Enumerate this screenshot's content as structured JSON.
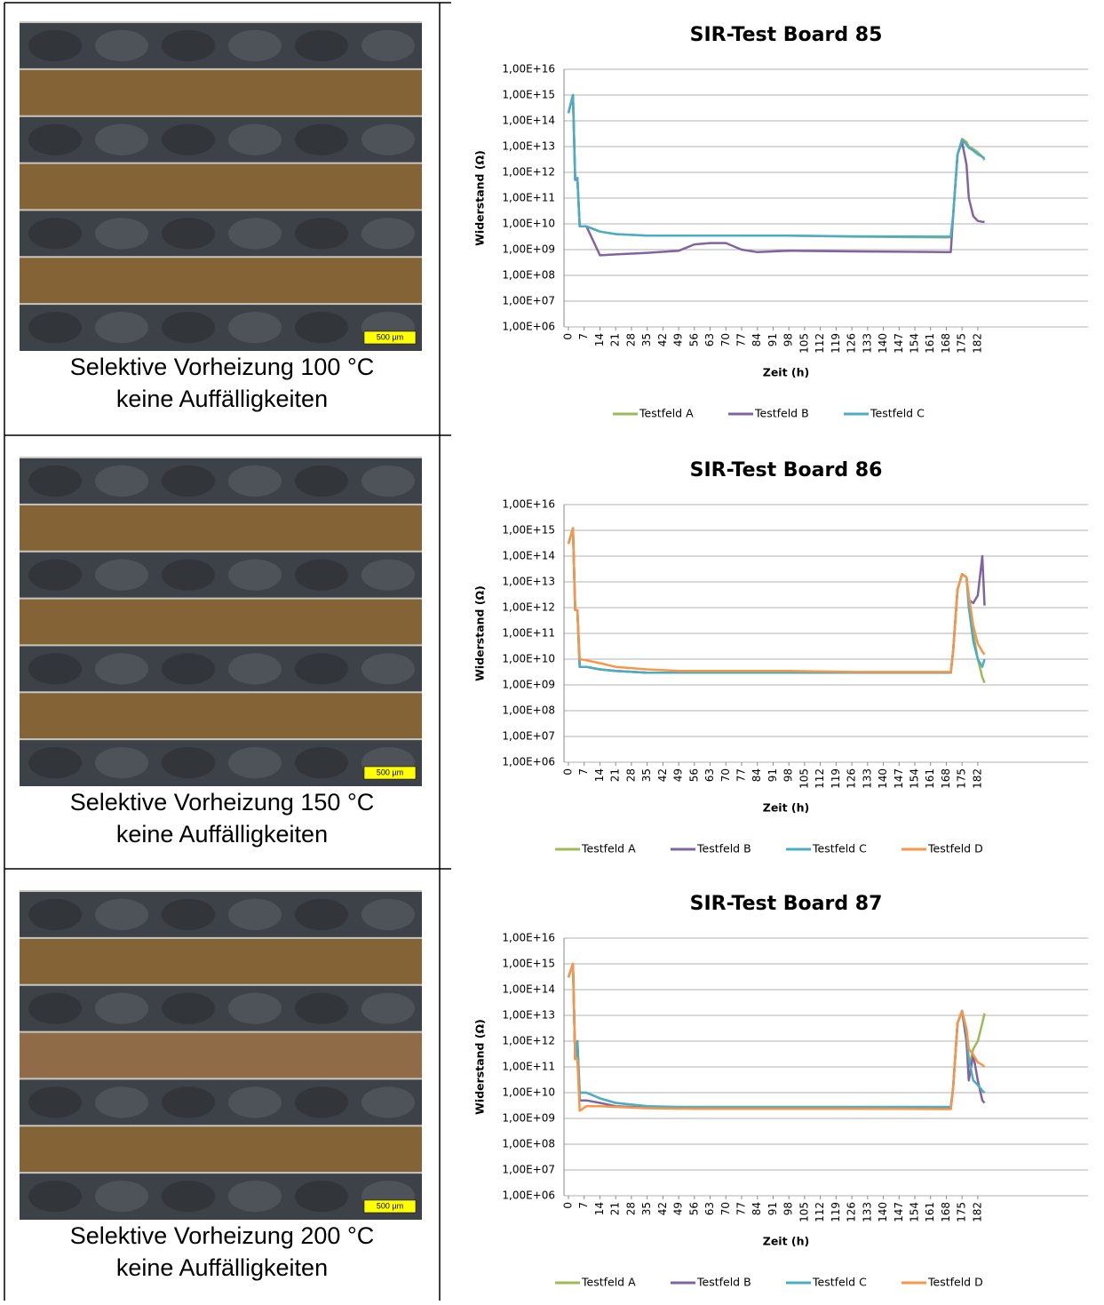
{
  "rows": [
    {
      "caption": [
        "Selektive Vorheizung 100 °C",
        "keine Auffälligkeiten"
      ],
      "scale": "500 µm"
    },
    {
      "caption": [
        "Selektive Vorheizung 150 °C",
        "keine Auffälligkeiten"
      ],
      "scale": "500 µm"
    },
    {
      "caption": [
        "Selektive Vorheizung 200 °C",
        "keine Auffälligkeiten"
      ],
      "scale": "500 µm"
    }
  ],
  "chart_data": [
    {
      "type": "line",
      "title": "SIR-Test Board 85",
      "x_label": "Zeit (h)",
      "y_label": "Widerstand (Ω)",
      "log_y": true,
      "grid": true,
      "legend": "bottom",
      "x": [
        0,
        2,
        3,
        4,
        5,
        8,
        14,
        21,
        35,
        49,
        56,
        63,
        70,
        77,
        84,
        98,
        126,
        168,
        170,
        171,
        173,
        175,
        177,
        178,
        180,
        182,
        184,
        185
      ],
      "xlim": [
        0,
        231
      ],
      "xticks": [
        0,
        7,
        14,
        21,
        28,
        35,
        42,
        49,
        56,
        63,
        70,
        77,
        84,
        91,
        98,
        105,
        112,
        119,
        126,
        133,
        140,
        147,
        154,
        161,
        168,
        175,
        182
      ],
      "ylim": [
        1000000.0,
        1e+16
      ],
      "yticks": [
        {
          "value": 1000000.0,
          "label": "1,00E+06"
        },
        {
          "value": 10000000.0,
          "label": "1,00E+07"
        },
        {
          "value": 100000000.0,
          "label": "1,00E+08"
        },
        {
          "value": 1000000000.0,
          "label": "1,00E+09"
        },
        {
          "value": 10000000000.0,
          "label": "1,00E+10"
        },
        {
          "value": 100000000000.0,
          "label": "1,00E+11"
        },
        {
          "value": 1000000000000.0,
          "label": "1,00E+12"
        },
        {
          "value": 10000000000000.0,
          "label": "1,00E+13"
        },
        {
          "value": 100000000000000.0,
          "label": "1,00E+14"
        },
        {
          "value": 1000000000000000.0,
          "label": "1,00E+15"
        },
        {
          "value": 1e+16,
          "label": "1,00E+16"
        }
      ],
      "series": [
        {
          "name": "Testfeld A",
          "color": "#9bbb59",
          "values": [
            200000000000000.0,
            1000000000000000.0,
            500000000000.0,
            600000000000.0,
            8000000000.0,
            8000000000.0,
            5000000000.0,
            4000000000.0,
            3500000000.0,
            3500000000.0,
            3500000000.0,
            3500000000.0,
            3500000000.0,
            3500000000.0,
            3500000000.0,
            3500000000.0,
            3200000000.0,
            3000000000.0,
            3000000000.0,
            20000000000.0,
            5000000000000.0,
            20000000000000.0,
            15000000000000.0,
            10000000000000.0,
            8000000000000.0,
            6000000000000.0,
            4000000000000.0,
            3000000000000.0
          ]
        },
        {
          "name": "Testfeld B",
          "color": "#8064a2",
          "values": [
            200000000000000.0,
            1000000000000000.0,
            500000000000.0,
            600000000000.0,
            8000000000.0,
            8000000000.0,
            600000000.0,
            650000000.0,
            750000000.0,
            900000000.0,
            1600000000.0,
            1800000000.0,
            1800000000.0,
            1000000000.0,
            800000000.0,
            900000000.0,
            850000000.0,
            800000000.0,
            800000000.0,
            20000000000.0,
            5000000000000.0,
            15000000000000.0,
            2000000000000.0,
            100000000000.0,
            20000000000.0,
            13000000000.0,
            12000000000.0,
            12000000000.0
          ]
        },
        {
          "name": "Testfeld C",
          "color": "#4bacc6",
          "values": [
            200000000000000.0,
            1000000000000000.0,
            500000000000.0,
            600000000000.0,
            8000000000.0,
            8000000000.0,
            5000000000.0,
            4000000000.0,
            3500000000.0,
            3500000000.0,
            3500000000.0,
            3500000000.0,
            3500000000.0,
            3500000000.0,
            3500000000.0,
            3500000000.0,
            3300000000.0,
            3200000000.0,
            3200000000.0,
            20000000000.0,
            5000000000000.0,
            18000000000000.0,
            12000000000000.0,
            9000000000000.0,
            7000000000000.0,
            5000000000000.0,
            4000000000000.0,
            3500000000000.0
          ]
        }
      ]
    },
    {
      "type": "line",
      "title": "SIR-Test Board 86",
      "x_label": "Zeit (h)",
      "y_label": "Widerstand (Ω)",
      "log_y": true,
      "grid": true,
      "legend": "bottom",
      "x": [
        0,
        2,
        3,
        4,
        5,
        8,
        14,
        21,
        35,
        49,
        56,
        63,
        70,
        77,
        84,
        98,
        126,
        168,
        170,
        171,
        173,
        175,
        177,
        178,
        180,
        182,
        184,
        185
      ],
      "xlim": [
        0,
        231
      ],
      "xticks": [
        0,
        7,
        14,
        21,
        28,
        35,
        42,
        49,
        56,
        63,
        70,
        77,
        84,
        91,
        98,
        105,
        112,
        119,
        126,
        133,
        140,
        147,
        154,
        161,
        168,
        175,
        182
      ],
      "ylim": [
        1000000.0,
        1e+16
      ],
      "yticks": [
        {
          "value": 1000000.0,
          "label": "1,00E+06"
        },
        {
          "value": 10000000.0,
          "label": "1,00E+07"
        },
        {
          "value": 100000000.0,
          "label": "1,00E+08"
        },
        {
          "value": 1000000000.0,
          "label": "1,00E+09"
        },
        {
          "value": 10000000000.0,
          "label": "1,00E+10"
        },
        {
          "value": 100000000000.0,
          "label": "1,00E+11"
        },
        {
          "value": 1000000000000.0,
          "label": "1,00E+12"
        },
        {
          "value": 10000000000000.0,
          "label": "1,00E+13"
        },
        {
          "value": 100000000000000.0,
          "label": "1,00E+14"
        },
        {
          "value": 1000000000000000.0,
          "label": "1,00E+15"
        },
        {
          "value": 1e+16,
          "label": "1,00E+16"
        }
      ],
      "series": [
        {
          "name": "Testfeld A",
          "color": "#9bbb59",
          "values": [
            300000000000000.0,
            1200000000000000.0,
            800000000000.0,
            800000000000.0,
            5000000000.0,
            5000000000.0,
            4000000000.0,
            3500000000.0,
            3000000000.0,
            3000000000.0,
            3000000000.0,
            3000000000.0,
            3000000000.0,
            3000000000.0,
            3000000000.0,
            3000000000.0,
            3000000000.0,
            3000000000.0,
            3000000000.0,
            20000000000.0,
            5000000000000.0,
            20000000000000.0,
            15000000000000.0,
            2000000000000.0,
            100000000000.0,
            10000000000.0,
            2000000000.0,
            1200000000.0
          ]
        },
        {
          "name": "Testfeld B",
          "color": "#8064a2",
          "values": [
            300000000000000.0,
            1200000000000000.0,
            800000000000.0,
            800000000000.0,
            5000000000.0,
            5000000000.0,
            4000000000.0,
            3500000000.0,
            3000000000.0,
            3000000000.0,
            3000000000.0,
            3000000000.0,
            3000000000.0,
            3000000000.0,
            3000000000.0,
            3000000000.0,
            3000000000.0,
            3000000000.0,
            3000000000.0,
            20000000000.0,
            5000000000000.0,
            20000000000000.0,
            15000000000000.0,
            2000000000000.0,
            1500000000000.0,
            3000000000000.0,
            100000000000000.0,
            1200000000000.0
          ]
        },
        {
          "name": "Testfeld C",
          "color": "#4bacc6",
          "values": [
            300000000000000.0,
            1200000000000000.0,
            800000000000.0,
            800000000000.0,
            5000000000.0,
            5000000000.0,
            4000000000.0,
            3500000000.0,
            3000000000.0,
            3000000000.0,
            3000000000.0,
            3000000000.0,
            3000000000.0,
            3000000000.0,
            3000000000.0,
            3000000000.0,
            3000000000.0,
            3000000000.0,
            3000000000.0,
            20000000000.0,
            5000000000000.0,
            20000000000000.0,
            15000000000000.0,
            1000000000000.0,
            50000000000.0,
            10000000000.0,
            5000000000.0,
            10000000000.0
          ]
        },
        {
          "name": "Testfeld D",
          "color": "#f79646",
          "values": [
            300000000000000.0,
            1200000000000000.0,
            800000000000.0,
            800000000000.0,
            10000000000.0,
            9000000000.0,
            7000000000.0,
            5000000000.0,
            4000000000.0,
            3500000000.0,
            3500000000.0,
            3500000000.0,
            3500000000.0,
            3500000000.0,
            3500000000.0,
            3500000000.0,
            3200000000.0,
            3200000000.0,
            3200000000.0,
            20000000000.0,
            5000000000000.0,
            20000000000000.0,
            15000000000000.0,
            3000000000000.0,
            200000000000.0,
            40000000000.0,
            20000000000.0,
            15000000000.0
          ]
        }
      ]
    },
    {
      "type": "line",
      "title": "SIR-Test Board 87",
      "x_label": "Zeit (h)",
      "y_label": "Widerstand (Ω)",
      "log_y": true,
      "grid": true,
      "legend": "bottom",
      "x": [
        0,
        2,
        3,
        4,
        5,
        8,
        14,
        21,
        35,
        49,
        56,
        63,
        70,
        77,
        84,
        98,
        126,
        168,
        170,
        171,
        173,
        175,
        177,
        178,
        180,
        182,
        184,
        185
      ],
      "xlim": [
        0,
        231
      ],
      "xticks": [
        0,
        7,
        14,
        21,
        28,
        35,
        42,
        49,
        56,
        63,
        70,
        77,
        84,
        91,
        98,
        105,
        112,
        119,
        126,
        133,
        140,
        147,
        154,
        161,
        168,
        175,
        182
      ],
      "ylim": [
        1000000.0,
        1e+16
      ],
      "yticks": [
        {
          "value": 1000000.0,
          "label": "1,00E+06"
        },
        {
          "value": 10000000.0,
          "label": "1,00E+07"
        },
        {
          "value": 100000000.0,
          "label": "1,00E+08"
        },
        {
          "value": 1000000000.0,
          "label": "1,00E+09"
        },
        {
          "value": 10000000000.0,
          "label": "1,00E+10"
        },
        {
          "value": 100000000000.0,
          "label": "1,00E+11"
        },
        {
          "value": 1000000000000.0,
          "label": "1,00E+12"
        },
        {
          "value": 10000000000000.0,
          "label": "1,00E+13"
        },
        {
          "value": 100000000000000.0,
          "label": "1,00E+14"
        },
        {
          "value": 1000000000000000.0,
          "label": "1,00E+15"
        },
        {
          "value": 1e+16,
          "label": "1,00E+16"
        }
      ],
      "series": [
        {
          "name": "Testfeld A",
          "color": "#9bbb59",
          "values": [
            300000000000000.0,
            1000000000000000.0,
            200000000000.0,
            1000000000000.0,
            10000000000.0,
            10000000000.0,
            6000000000.0,
            4000000000.0,
            3000000000.0,
            2600000000.0,
            2600000000.0,
            2600000000.0,
            2600000000.0,
            2600000000.0,
            2600000000.0,
            2600000000.0,
            2600000000.0,
            2500000000.0,
            2500000000.0,
            15000000000.0,
            5000000000000.0,
            15000000000000.0,
            1000000000000.0,
            100000000000.0,
            500000000000.0,
            1000000000000.0,
            5000000000000.0,
            12000000000000.0
          ]
        },
        {
          "name": "Testfeld B",
          "color": "#8064a2",
          "values": [
            300000000000000.0,
            1000000000000000.0,
            200000000000.0,
            1000000000000.0,
            5000000000.0,
            5000000000.0,
            4000000000.0,
            3000000000.0,
            2600000000.0,
            2500000000.0,
            2400000000.0,
            2400000000.0,
            2400000000.0,
            2400000000.0,
            2400000000.0,
            2400000000.0,
            2400000000.0,
            2400000000.0,
            2400000000.0,
            15000000000.0,
            5000000000000.0,
            15000000000000.0,
            1000000000000.0,
            30000000000.0,
            300000000000.0,
            30000000000.0,
            5000000000.0,
            4000000000.0
          ]
        },
        {
          "name": "Testfeld C",
          "color": "#4bacc6",
          "values": [
            300000000000000.0,
            1000000000000000.0,
            200000000000.0,
            1000000000000.0,
            10000000000.0,
            10000000000.0,
            6000000000.0,
            4000000000.0,
            3000000000.0,
            2800000000.0,
            2800000000.0,
            2800000000.0,
            2800000000.0,
            2800000000.0,
            2800000000.0,
            2800000000.0,
            2800000000.0,
            2800000000.0,
            2800000000.0,
            15000000000.0,
            5000000000000.0,
            15000000000000.0,
            2000000000000.0,
            200000000000.0,
            30000000000.0,
            20000000000.0,
            12000000000.0,
            10000000000.0
          ]
        },
        {
          "name": "Testfeld D",
          "color": "#f79646",
          "values": [
            300000000000000.0,
            1000000000000000.0,
            200000000000.0,
            200000000000.0,
            2000000000.0,
            3000000000.0,
            3000000000.0,
            2800000000.0,
            2500000000.0,
            2400000000.0,
            2400000000.0,
            2400000000.0,
            2400000000.0,
            2400000000.0,
            2400000000.0,
            2400000000.0,
            2400000000.0,
            2300000000.0,
            2300000000.0,
            15000000000.0,
            5000000000000.0,
            15000000000000.0,
            3000000000000.0,
            500000000000.0,
            300000000000.0,
            150000000000.0,
            120000000000.0,
            100000000000.0
          ]
        }
      ]
    }
  ]
}
